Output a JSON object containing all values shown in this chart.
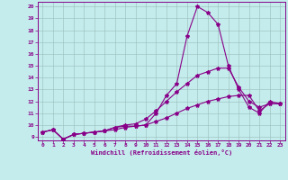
{
  "title": "",
  "xlabel": "Windchill (Refroidissement éolien,°C)",
  "ylabel": "",
  "bg_color": "#c4ecec",
  "line_color": "#880088",
  "grid_color": "#99bbbb",
  "xlim": [
    -0.5,
    23.5
  ],
  "ylim": [
    8.7,
    20.4
  ],
  "xticks": [
    0,
    1,
    2,
    3,
    4,
    5,
    6,
    7,
    8,
    9,
    10,
    11,
    12,
    13,
    14,
    15,
    16,
    17,
    18,
    19,
    20,
    21,
    22,
    23
  ],
  "yticks": [
    9,
    10,
    11,
    12,
    13,
    14,
    15,
    16,
    17,
    18,
    19,
    20
  ],
  "line1_x": [
    0,
    1,
    2,
    3,
    4,
    5,
    6,
    7,
    8,
    9,
    10,
    11,
    12,
    13,
    14,
    15,
    16,
    17,
    18,
    19,
    20,
    21,
    22,
    23
  ],
  "line1_y": [
    9.4,
    9.6,
    8.8,
    9.2,
    9.3,
    9.4,
    9.5,
    9.8,
    9.9,
    9.9,
    10.0,
    11.0,
    12.5,
    13.5,
    17.5,
    20.0,
    19.5,
    18.5,
    15.0,
    13.0,
    11.5,
    11.0,
    12.0,
    11.8
  ],
  "line2_x": [
    0,
    1,
    2,
    3,
    4,
    5,
    6,
    7,
    8,
    9,
    10,
    11,
    12,
    13,
    14,
    15,
    16,
    17,
    18,
    19,
    20,
    21,
    22,
    23
  ],
  "line2_y": [
    9.4,
    9.6,
    8.8,
    9.2,
    9.3,
    9.4,
    9.5,
    9.8,
    10.0,
    10.1,
    10.5,
    11.2,
    12.0,
    12.8,
    13.5,
    14.2,
    14.5,
    14.8,
    14.8,
    13.2,
    12.0,
    11.5,
    11.8,
    11.8
  ],
  "line3_x": [
    0,
    1,
    2,
    3,
    4,
    5,
    6,
    7,
    8,
    9,
    10,
    11,
    12,
    13,
    14,
    15,
    16,
    17,
    18,
    19,
    20,
    21,
    22,
    23
  ],
  "line3_y": [
    9.4,
    9.6,
    8.8,
    9.2,
    9.3,
    9.4,
    9.5,
    9.6,
    9.8,
    9.9,
    10.0,
    10.3,
    10.6,
    11.0,
    11.4,
    11.7,
    12.0,
    12.2,
    12.4,
    12.5,
    12.5,
    11.2,
    11.8,
    11.8
  ],
  "marker": "*",
  "markersize": 3,
  "linewidth": 0.8,
  "tick_fontsize": 4.5,
  "label_fontsize": 5.0
}
